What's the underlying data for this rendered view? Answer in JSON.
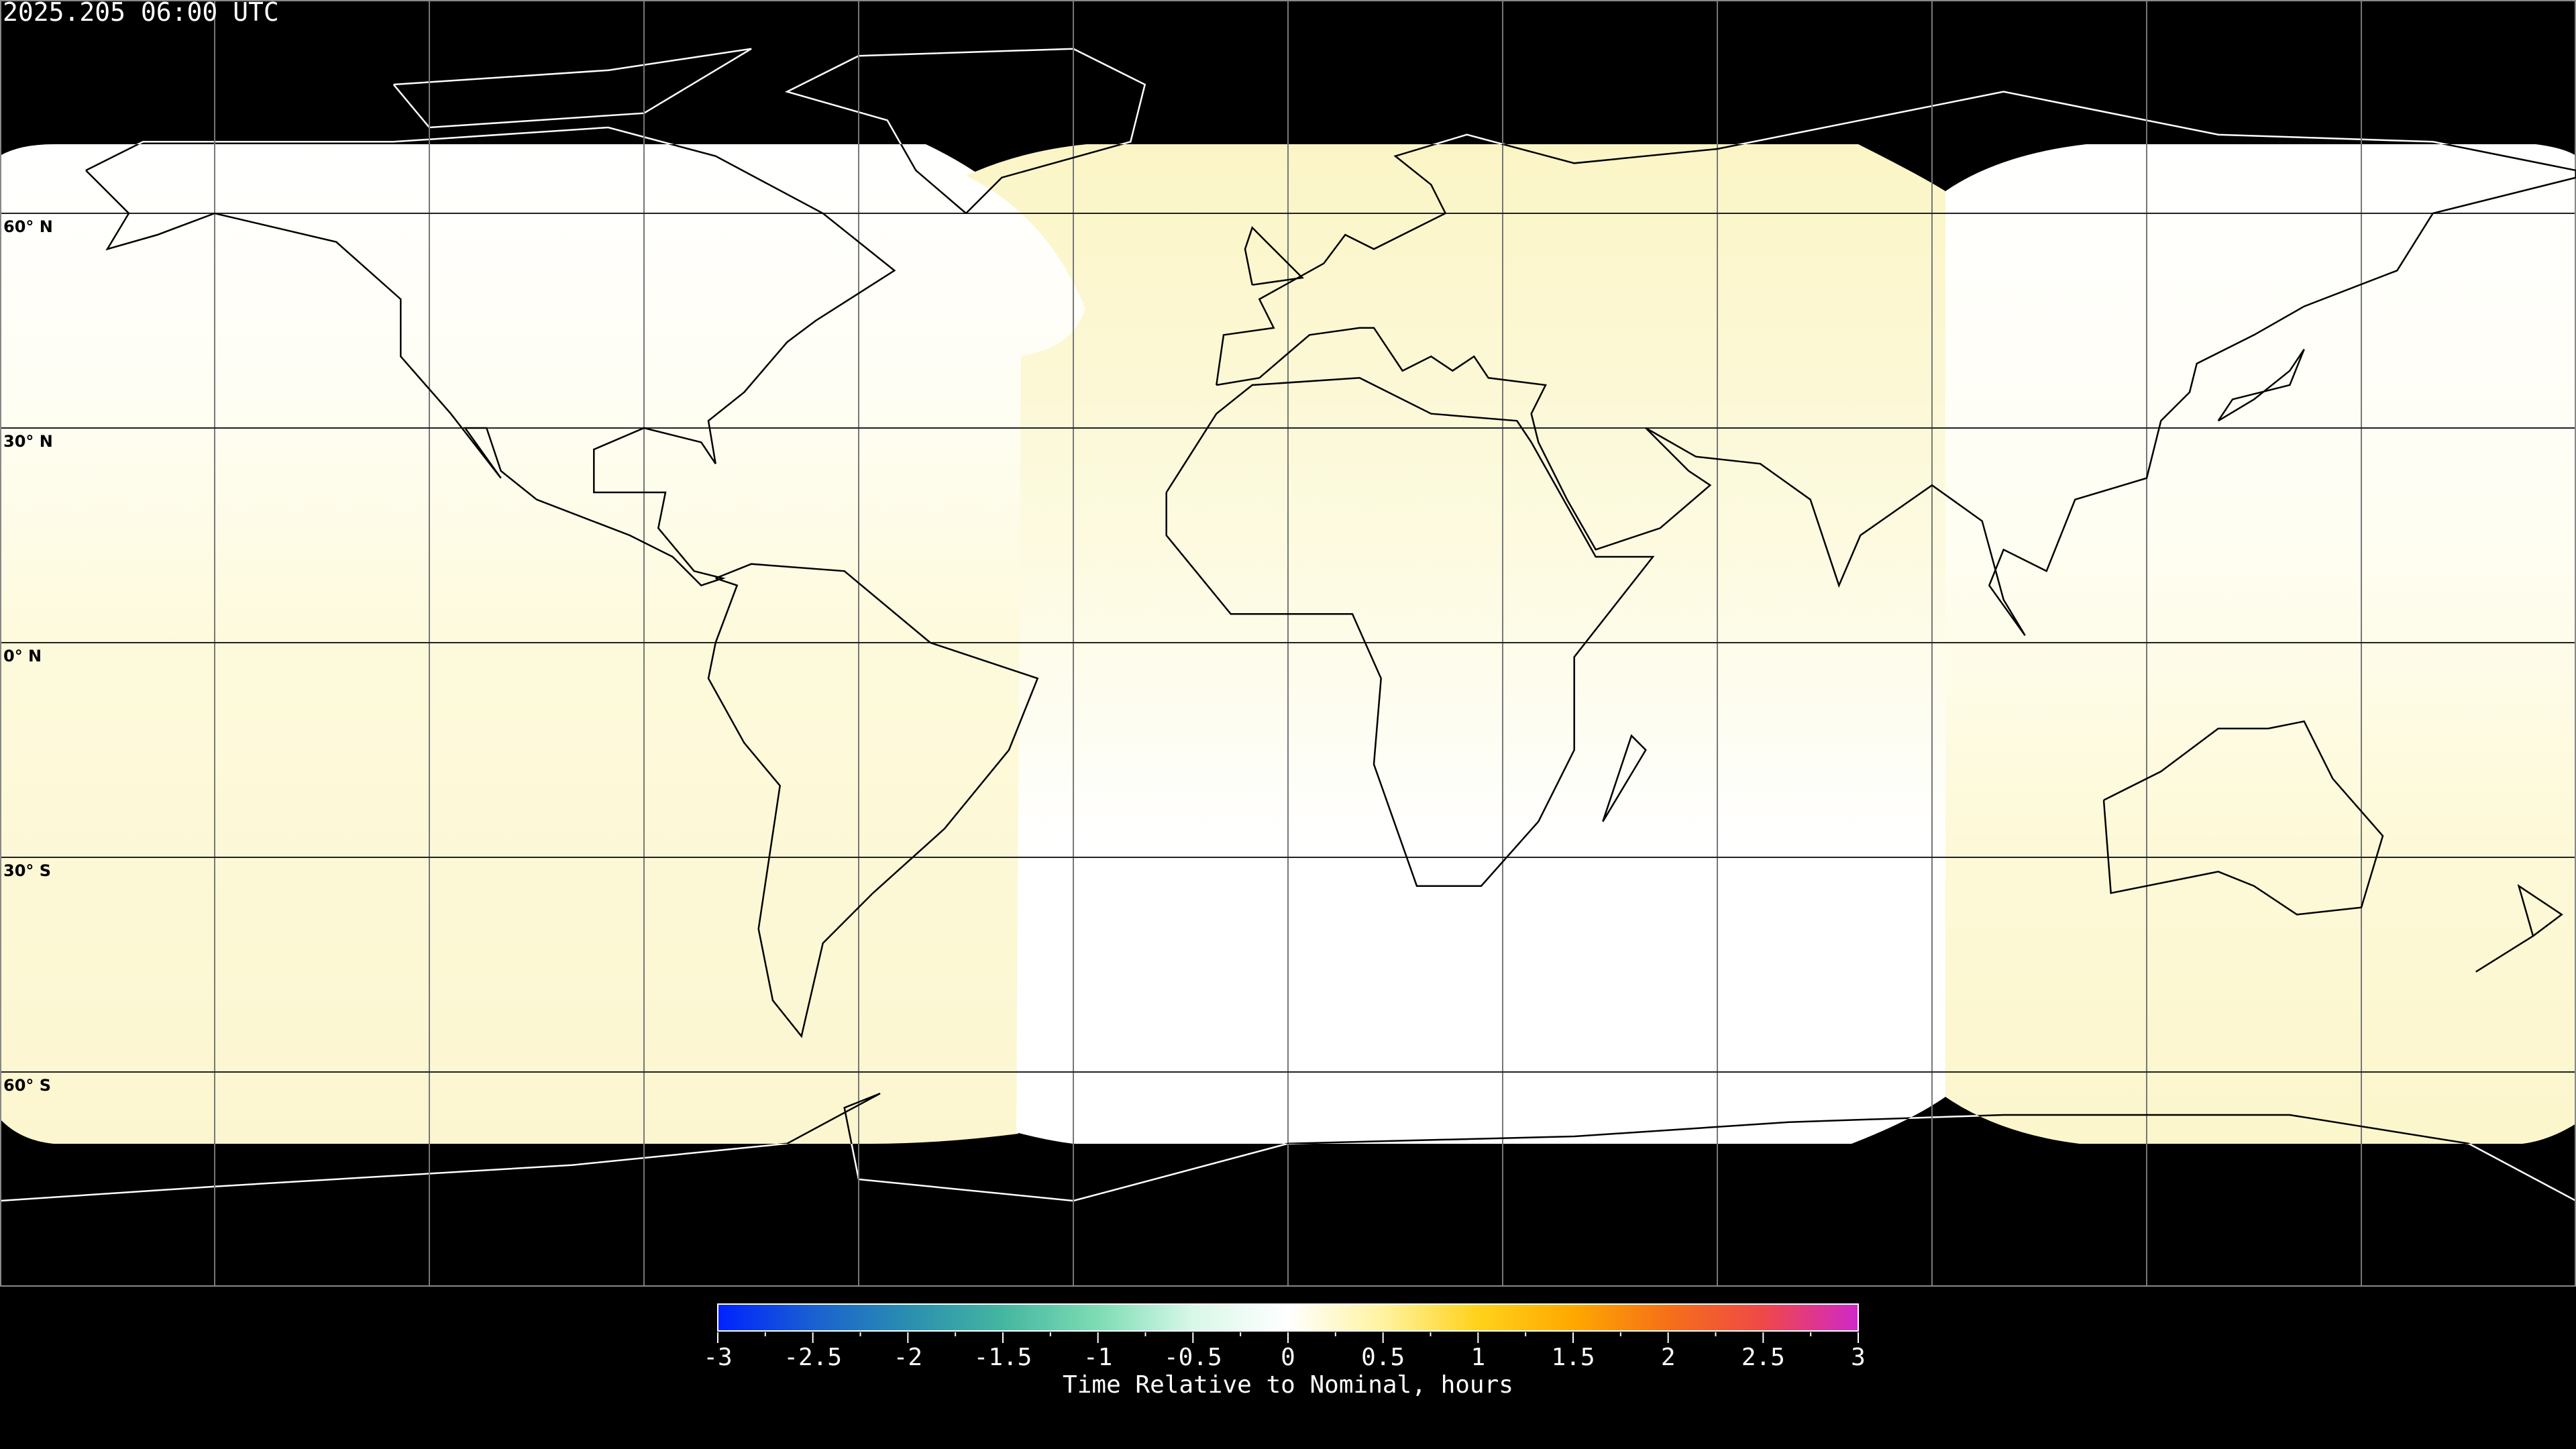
{
  "title": "2025.205 06:00 UTC",
  "map": {
    "projection": "equirectangular",
    "lat_labels": [
      "60° N",
      "30° N",
      "0° N",
      "30° S",
      "60° S"
    ],
    "lat_values": [
      60,
      30,
      0,
      -30,
      -60
    ],
    "lon_grid_step": 30,
    "colors": {
      "background": "#000000",
      "grid": "#000000",
      "coast_on_data": "#000000",
      "coast_on_background": "#ffffff"
    }
  },
  "colorbar": {
    "title": "Time Relative to Nominal, hours",
    "range": [
      -3,
      3
    ],
    "tick_labels": [
      "-3",
      "-2.5",
      "-2",
      "-1.5",
      "-1",
      "-0.5",
      "0",
      "0.5",
      "1",
      "1.5",
      "2",
      "2.5",
      "3"
    ],
    "colors": [
      "#0022ff",
      "#1a60d0",
      "#2a8eb0",
      "#45b6a0",
      "#7ddcb4",
      "#d8f8e8",
      "#ffffff",
      "#fff3a0",
      "#ffd21a",
      "#ffa800",
      "#f57018",
      "#ef4848",
      "#d028c8"
    ]
  }
}
